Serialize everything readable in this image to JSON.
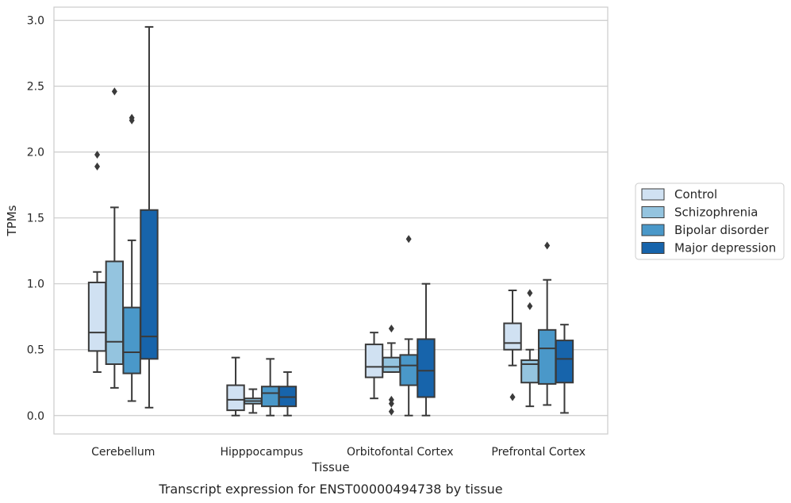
{
  "chart_data": {
    "type": "box",
    "title": "",
    "caption": "Transcript expression for ENST00000494738 by tissue",
    "xlabel": "Tissue",
    "ylabel": "TPMs",
    "ylim": [
      -0.14,
      3.1
    ],
    "yticks": [
      0.0,
      0.5,
      1.0,
      1.5,
      2.0,
      2.5,
      3.0
    ],
    "ytick_labels": [
      "0.0",
      "0.5",
      "1.0",
      "1.5",
      "2.0",
      "2.5",
      "3.0"
    ],
    "grid": "horizontal",
    "legend_placement": "right",
    "categories": [
      "Cerebellum",
      "Hipppocampus",
      "Orbitofontal Cortex",
      "Prefrontal Cortex"
    ],
    "series": [
      {
        "name": "Control",
        "color": "#d0e1f2",
        "boxes": [
          {
            "whislo": 0.33,
            "q1": 0.49,
            "med": 0.63,
            "q3": 1.01,
            "whishi": 1.09,
            "fliers": [
              1.89,
              1.98
            ]
          },
          {
            "whislo": 0.0,
            "q1": 0.04,
            "med": 0.12,
            "q3": 0.23,
            "whishi": 0.44,
            "fliers": []
          },
          {
            "whislo": 0.13,
            "q1": 0.29,
            "med": 0.37,
            "q3": 0.54,
            "whishi": 0.63,
            "fliers": []
          },
          {
            "whislo": 0.38,
            "q1": 0.5,
            "med": 0.55,
            "q3": 0.7,
            "whishi": 0.95,
            "fliers": [
              0.14
            ]
          }
        ]
      },
      {
        "name": "Schizophrenia",
        "color": "#94c4df",
        "boxes": [
          {
            "whislo": 0.21,
            "q1": 0.39,
            "med": 0.56,
            "q3": 1.17,
            "whishi": 1.58,
            "fliers": [
              2.46
            ]
          },
          {
            "whislo": 0.02,
            "q1": 0.09,
            "med": 0.11,
            "q3": 0.13,
            "whishi": 0.2,
            "fliers": []
          },
          {
            "whislo": 0.33,
            "q1": 0.33,
            "med": 0.37,
            "q3": 0.44,
            "whishi": 0.55,
            "fliers": [
              0.03,
              0.09,
              0.12,
              0.66
            ]
          },
          {
            "whislo": 0.07,
            "q1": 0.25,
            "med": 0.39,
            "q3": 0.42,
            "whishi": 0.5,
            "fliers": [
              0.83,
              0.93
            ]
          }
        ]
      },
      {
        "name": "Bipolar disorder",
        "color": "#4a98c9",
        "boxes": [
          {
            "whislo": 0.11,
            "q1": 0.32,
            "med": 0.48,
            "q3": 0.82,
            "whishi": 1.33,
            "fliers": [
              2.24,
              2.26
            ]
          },
          {
            "whislo": 0.0,
            "q1": 0.07,
            "med": 0.17,
            "q3": 0.22,
            "whishi": 0.43,
            "fliers": []
          },
          {
            "whislo": 0.0,
            "q1": 0.23,
            "med": 0.38,
            "q3": 0.46,
            "whishi": 0.58,
            "fliers": [
              1.34
            ]
          },
          {
            "whislo": 0.08,
            "q1": 0.24,
            "med": 0.51,
            "q3": 0.65,
            "whishi": 1.03,
            "fliers": [
              1.29
            ]
          }
        ]
      },
      {
        "name": "Major depression",
        "color": "#1764ab",
        "boxes": [
          {
            "whislo": 0.06,
            "q1": 0.43,
            "med": 0.6,
            "q3": 1.56,
            "whishi": 2.95,
            "fliers": []
          },
          {
            "whislo": 0.0,
            "q1": 0.07,
            "med": 0.14,
            "q3": 0.22,
            "whishi": 0.33,
            "fliers": []
          },
          {
            "whislo": 0.0,
            "q1": 0.14,
            "med": 0.34,
            "q3": 0.58,
            "whishi": 1.0,
            "fliers": []
          },
          {
            "whislo": 0.02,
            "q1": 0.25,
            "med": 0.43,
            "q3": 0.57,
            "whishi": 0.69,
            "fliers": []
          }
        ]
      }
    ]
  }
}
